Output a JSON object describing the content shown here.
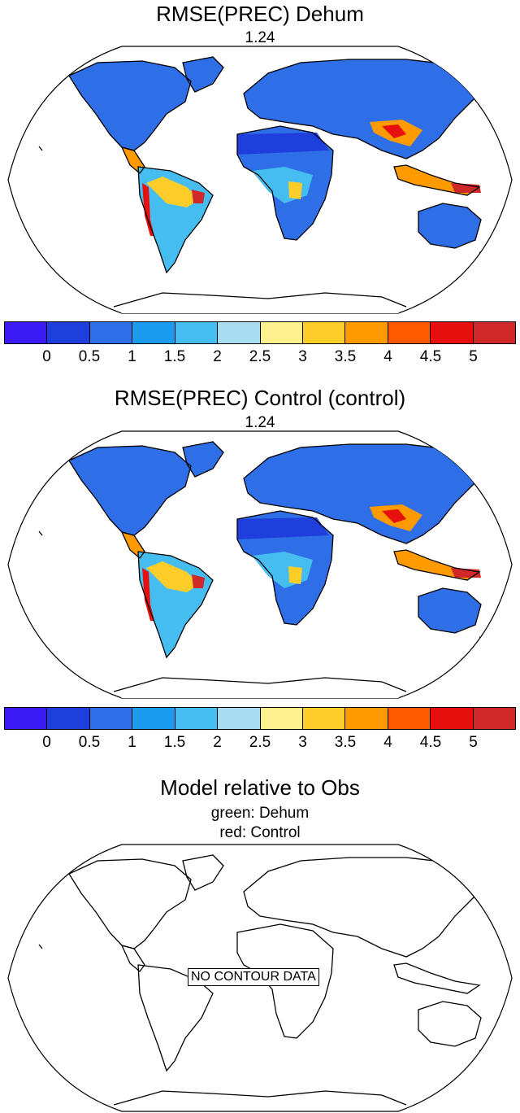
{
  "panels": [
    {
      "title": "RMSE(PREC) Dehum",
      "value": "1.24"
    },
    {
      "title": "RMSE(PREC) Control (control)",
      "value": "1.24"
    }
  ],
  "colorbar": {
    "colors": [
      "#3a19f2",
      "#1e3fdc",
      "#2e6ee6",
      "#1b9cf0",
      "#46bdf0",
      "#a8dcf0",
      "#fff28e",
      "#ffcd2a",
      "#ff9a00",
      "#ff5a00",
      "#e8100e",
      "#d02828"
    ],
    "labels": [
      "0",
      "0.5",
      "1",
      "1.5",
      "2",
      "2.5",
      "3",
      "3.5",
      "4",
      "4.5",
      "5"
    ]
  },
  "third": {
    "title": "Model relative to Obs",
    "line1": "green: Dehum",
    "line2": "red: Control",
    "nodata": "NO CONTOUR DATA"
  }
}
